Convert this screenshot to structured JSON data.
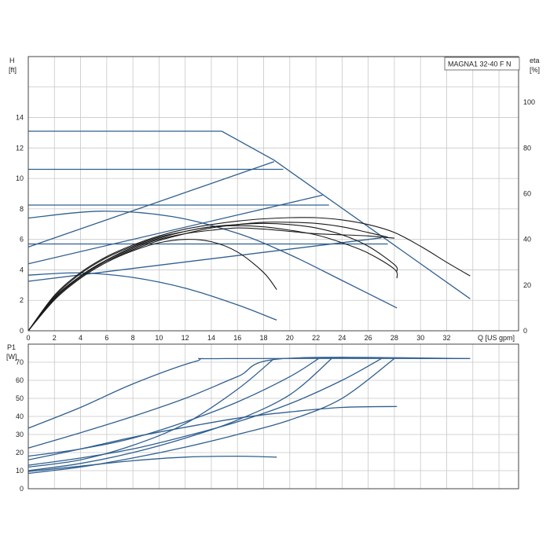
{
  "legend_title": "MAGNA1 32-40 F N",
  "colors": {
    "hq_curve": "#2f5f8f",
    "eta_curve": "#1a1a1a",
    "grid": "#c8c8c8"
  },
  "chart_data": [
    {
      "type": "line",
      "title": "MAGNA1 32-40 F N",
      "x_label": "Q [US gpm]",
      "y_label_top": "H",
      "y_label_bottom": "[ft]",
      "y2_label_top": "eta",
      "y2_label_bottom": "[%]",
      "xlim": [
        0,
        37.5
      ],
      "ylim": [
        0,
        18
      ],
      "y2lim": [
        0,
        120
      ],
      "x_ticks": [
        0,
        2,
        4,
        6,
        8,
        10,
        12,
        14,
        16,
        18,
        20,
        22,
        24,
        26,
        28,
        30,
        32
      ],
      "x_tick_labels": [
        "0",
        "2",
        "4",
        "6",
        "8",
        "10",
        "12",
        "14",
        "16",
        "18",
        "20",
        "22",
        "24",
        "26",
        "28",
        "30",
        "32"
      ],
      "y_ticks": [
        0,
        2,
        4,
        6,
        8,
        10,
        12,
        14
      ],
      "y_tick_labels": [
        "0",
        "2",
        "4",
        "6",
        "8",
        "10",
        "12",
        "14"
      ],
      "y2_ticks": [
        0,
        20,
        40,
        60,
        80,
        100
      ],
      "y2_tick_labels": [
        "0",
        "20",
        "40",
        "60",
        "80",
        "100"
      ],
      "grid": true,
      "legend_position": "top-right",
      "series": [
        {
          "kind": "hq",
          "x": [
            0,
            14.8,
            18.8,
            33.8
          ],
          "y": [
            13.1,
            13.1,
            11.2,
            2.1
          ]
        },
        {
          "kind": "hq",
          "x": [
            0,
            19.5
          ],
          "y": [
            10.6,
            10.6
          ]
        },
        {
          "kind": "hq",
          "x": [
            0,
            23.0
          ],
          "y": [
            8.25,
            8.25
          ]
        },
        {
          "kind": "hq",
          "x": [
            0,
            27.5
          ],
          "y": [
            5.7,
            5.7
          ]
        },
        {
          "kind": "hq",
          "x": [
            0,
            18.8
          ],
          "y": [
            5.5,
            11.1
          ]
        },
        {
          "kind": "hq",
          "x": [
            0,
            22.5
          ],
          "y": [
            4.4,
            8.9
          ]
        },
        {
          "kind": "hq",
          "x": [
            0,
            27.0
          ],
          "y": [
            3.25,
            6.1
          ]
        },
        {
          "kind": "hq",
          "x": [
            0,
            5.5,
            11.0,
            16.0,
            20.0,
            24.0,
            28.2
          ],
          "y": [
            7.4,
            7.85,
            7.5,
            6.4,
            5.0,
            3.3,
            1.5
          ]
        },
        {
          "kind": "hq",
          "x": [
            0,
            4.0,
            8.0,
            12.0,
            16.0,
            19.0
          ],
          "y": [
            3.65,
            3.8,
            3.5,
            2.8,
            1.7,
            0.7
          ]
        },
        {
          "kind": "eta",
          "x": [
            0,
            2,
            4,
            6,
            8,
            10,
            12,
            14,
            16,
            18,
            20,
            22,
            24,
            26,
            28,
            30,
            32,
            33.8
          ],
          "y": [
            0,
            15.5,
            25.5,
            32.5,
            37.5,
            41.5,
            44.5,
            46.5,
            48,
            49,
            49.5,
            49.5,
            48.5,
            46.5,
            43,
            37,
            30,
            24
          ]
        },
        {
          "kind": "eta",
          "x": [
            0,
            2,
            4,
            6,
            8,
            10,
            12,
            14,
            16,
            18,
            20,
            22,
            24,
            26,
            28,
            28.2
          ],
          "y": [
            0,
            15,
            25,
            32,
            37,
            41,
            43.5,
            45.5,
            46.5,
            47,
            46.5,
            45,
            42,
            37,
            29,
            26
          ]
        },
        {
          "kind": "eta",
          "x": [
            0,
            2,
            4,
            6,
            8,
            10,
            12,
            14,
            16,
            18,
            20,
            22,
            24,
            26,
            28,
            28.2
          ],
          "y": [
            0,
            14.5,
            24,
            31,
            36.5,
            40.5,
            43.5,
            45.5,
            46,
            45.5,
            44,
            42,
            38.5,
            34,
            27,
            23
          ]
        },
        {
          "kind": "eta",
          "x": [
            0,
            2,
            4,
            6,
            8,
            10,
            12,
            14,
            16,
            18,
            20,
            22,
            24,
            26,
            28
          ],
          "y": [
            0,
            14,
            24,
            31,
            36,
            40,
            42.5,
            44,
            45,
            44.5,
            43.5,
            42.5,
            42,
            41.5,
            40.5
          ]
        },
        {
          "kind": "eta",
          "x": [
            0,
            2,
            4,
            6,
            8,
            10,
            12,
            14,
            16,
            18,
            19.0
          ],
          "y": [
            0,
            13.5,
            23,
            30,
            35,
            38.5,
            40,
            39,
            34.5,
            25.5,
            18
          ]
        },
        {
          "kind": "eta",
          "x": [
            0,
            2,
            4,
            6,
            8,
            10,
            12,
            14,
            16,
            18,
            20,
            22,
            24,
            26,
            27.5
          ],
          "y": [
            0,
            14,
            23.5,
            30.5,
            35.5,
            39.5,
            42.5,
            45,
            46.5,
            47.5,
            47.5,
            47,
            45.5,
            43,
            41
          ]
        }
      ]
    },
    {
      "type": "line",
      "x_label": "",
      "y_label_top": "P1",
      "y_label_bottom": "[W]",
      "xlim": [
        0,
        37.5
      ],
      "ylim": [
        0,
        80
      ],
      "x_ticks": [
        0,
        2,
        4,
        6,
        8,
        10,
        12,
        14,
        16,
        18,
        20,
        22,
        24,
        26,
        28,
        30,
        32
      ],
      "y_ticks": [
        0,
        10,
        20,
        30,
        40,
        50,
        60,
        70
      ],
      "y_tick_labels": [
        "0",
        "10",
        "20",
        "30",
        "40",
        "50",
        "60",
        "70"
      ],
      "grid": true,
      "series": [
        {
          "kind": "power",
          "x": [
            0,
            4,
            8,
            12.8,
            15,
            33.8
          ],
          "y": [
            33.5,
            45,
            58,
            70.5,
            72,
            72
          ]
        },
        {
          "kind": "power",
          "x": [
            0,
            4,
            8,
            12,
            16,
            19.5,
            33.8
          ],
          "y": [
            22.5,
            31,
            40,
            50,
            62,
            72,
            72
          ]
        },
        {
          "kind": "power",
          "x": [
            0,
            4,
            8,
            12,
            16,
            18.8
          ],
          "y": [
            12,
            16,
            24,
            36,
            55,
            72
          ]
        },
        {
          "kind": "power",
          "x": [
            0,
            4,
            8,
            12,
            16,
            20,
            22.2
          ],
          "y": [
            18,
            22,
            28,
            37,
            48,
            62,
            72
          ]
        },
        {
          "kind": "power",
          "x": [
            0,
            4,
            8,
            12,
            16,
            20,
            23.2
          ],
          "y": [
            10,
            14,
            20,
            28,
            38,
            52,
            72
          ]
        },
        {
          "kind": "power",
          "x": [
            0,
            4,
            8,
            12,
            16,
            20,
            24,
            27.0
          ],
          "y": [
            13,
            17,
            22,
            29,
            37,
            47,
            60,
            72
          ]
        },
        {
          "kind": "power",
          "x": [
            0,
            4,
            8,
            12,
            16,
            20,
            24,
            28.0
          ],
          "y": [
            8.5,
            12,
            17,
            23,
            30,
            38,
            50,
            72
          ]
        },
        {
          "kind": "power",
          "x": [
            0,
            4,
            8,
            12,
            16,
            20,
            24,
            28.2
          ],
          "y": [
            16,
            22,
            28.5,
            34,
            39,
            42.5,
            45,
            45.5
          ]
        },
        {
          "kind": "power",
          "x": [
            0,
            4,
            8,
            12,
            16,
            19.0
          ],
          "y": [
            9.5,
            12.5,
            15.5,
            17.5,
            18,
            17.5
          ]
        }
      ]
    }
  ]
}
